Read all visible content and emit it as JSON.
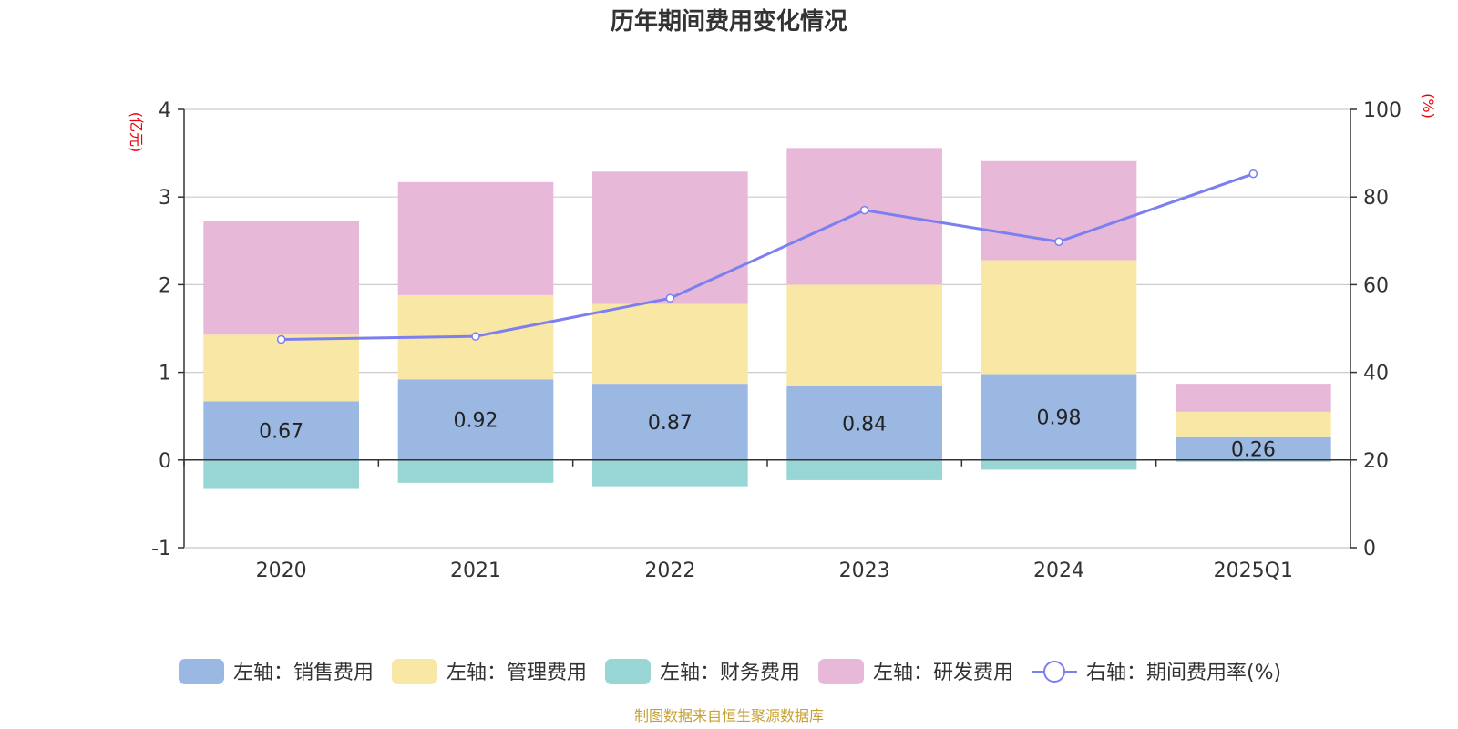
{
  "chart_data": {
    "type": "bar",
    "title": "历年期间费用变化情况",
    "categories": [
      "2020",
      "2021",
      "2022",
      "2023",
      "2024",
      "2025Q1"
    ],
    "y_left": {
      "label": "(亿元)",
      "ylim": [
        -1,
        4
      ],
      "ticks": [
        -1,
        0,
        1,
        2,
        3,
        4
      ]
    },
    "y_right": {
      "label": "(%)",
      "ylim": [
        0,
        100
      ],
      "ticks": [
        0,
        20,
        40,
        60,
        80,
        100
      ]
    },
    "series": [
      {
        "name": "左轴：销售费用",
        "type": "stacked-bar",
        "axis": "left",
        "color": "#9bb8e2",
        "values": [
          0.67,
          0.92,
          0.87,
          0.84,
          0.98,
          0.26
        ],
        "data_labels": [
          "0.67",
          "0.92",
          "0.87",
          "0.84",
          "0.98",
          "0.26"
        ]
      },
      {
        "name": "左轴：管理费用",
        "type": "stacked-bar",
        "axis": "left",
        "color": "#f8e7a5",
        "values": [
          0.76,
          0.96,
          0.91,
          1.16,
          1.3,
          0.29
        ]
      },
      {
        "name": "左轴：财务费用",
        "type": "stacked-bar",
        "axis": "left",
        "color": "#98d5d5",
        "values": [
          -0.33,
          -0.26,
          -0.3,
          -0.23,
          -0.11,
          -0.02
        ]
      },
      {
        "name": "左轴：研发费用",
        "type": "stacked-bar",
        "axis": "left",
        "color": "#e8b8d9",
        "values": [
          1.3,
          1.29,
          1.51,
          1.56,
          1.13,
          0.32
        ]
      },
      {
        "name": "右轴：期间费用率(%)",
        "type": "line",
        "axis": "right",
        "color": "#7b7fef",
        "values": [
          47.5,
          48.2,
          56.9,
          77.0,
          69.8,
          85.3
        ]
      }
    ],
    "grid": true,
    "legend_position": "bottom",
    "source_note": "制图数据来自恒生聚源数据库"
  }
}
